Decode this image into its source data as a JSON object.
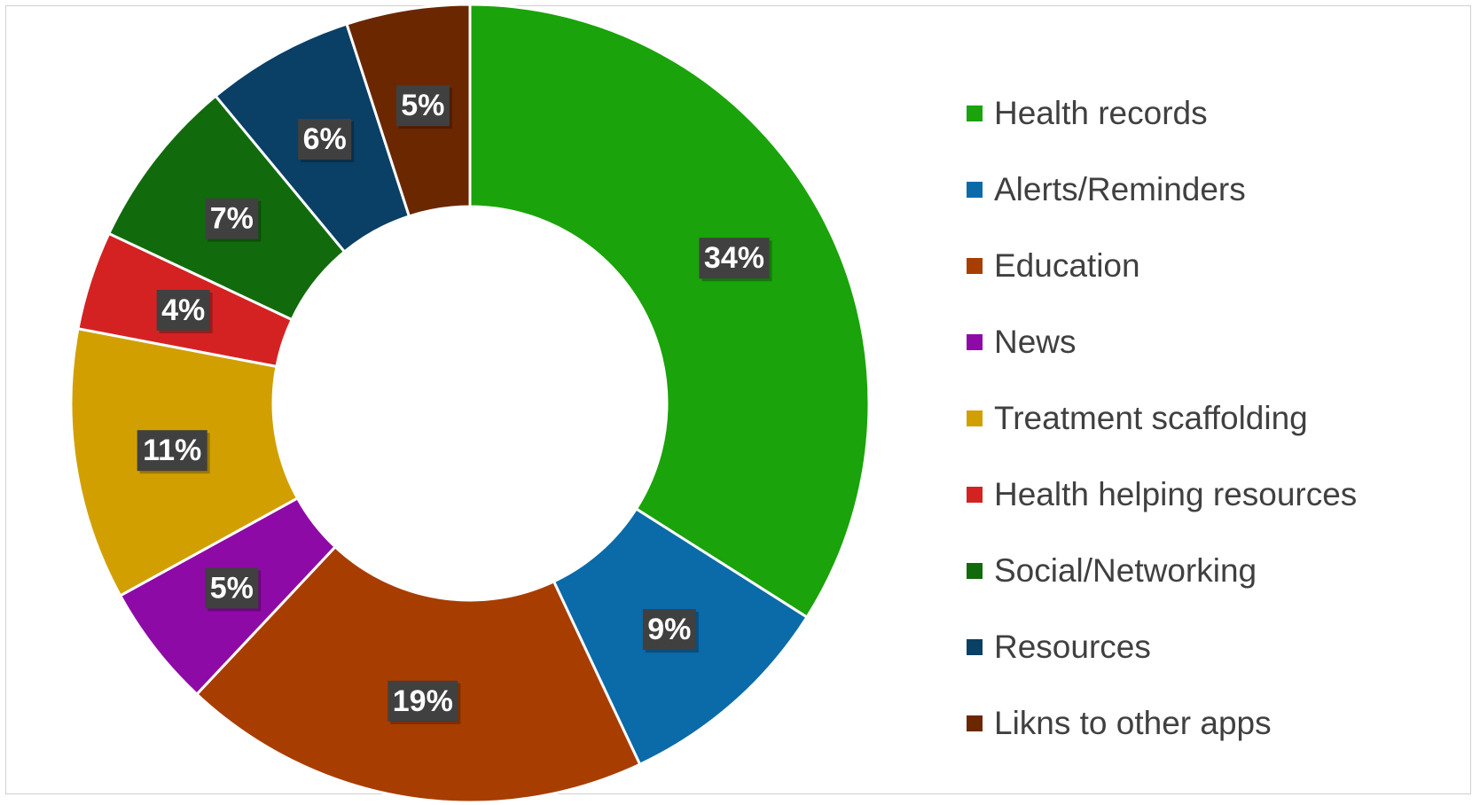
{
  "chart_data": {
    "type": "pie",
    "variant": "doughnut",
    "legend_position": "right",
    "label_style": "white bold percentage on dark grey box",
    "slices": [
      {
        "name": "Health records",
        "value": 34,
        "label": "34%",
        "color": "#1aa30a"
      },
      {
        "name": "Alerts/Reminders",
        "value": 9,
        "label": "9%",
        "color": "#0b6aa8"
      },
      {
        "name": "Education",
        "value": 19,
        "label": "19%",
        "color": "#a83d00"
      },
      {
        "name": "News",
        "value": 5,
        "label": "5%",
        "color": "#8e0aa6"
      },
      {
        "name": "Treatment scaffolding",
        "value": 11,
        "label": "11%",
        "color": "#d1a000"
      },
      {
        "name": "Health helping resources",
        "value": 4,
        "label": "4%",
        "color": "#d42222"
      },
      {
        "name": "Social/Networking",
        "value": 7,
        "label": "7%",
        "color": "#116b0d"
      },
      {
        "name": "Resources",
        "value": 6,
        "label": "6%",
        "color": "#0a3f66"
      },
      {
        "name": "Likns to other apps",
        "value": 5,
        "label": "5%",
        "color": "#6b2700"
      }
    ]
  }
}
